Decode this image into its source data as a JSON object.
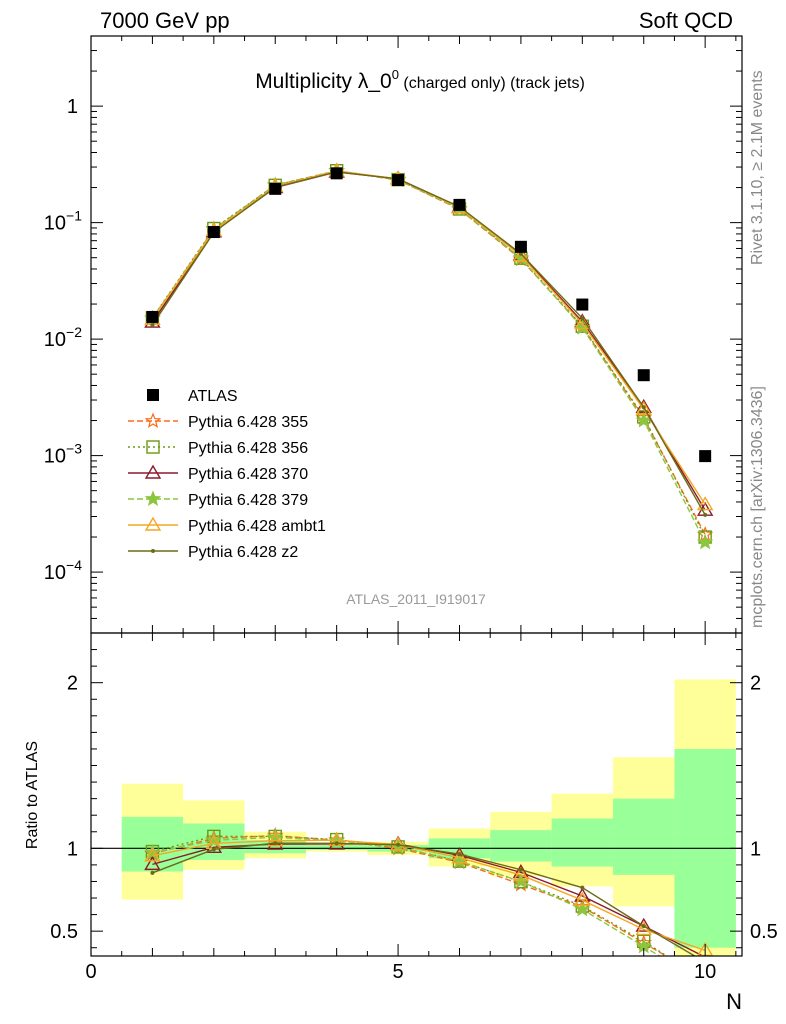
{
  "header": {
    "left": "7000 GeV pp",
    "right": "Soft QCD"
  },
  "side_labels": {
    "rivet": "Rivet 3.1.10, ≥ 2.1M events",
    "mcplots": "mcplots.cern.ch [arXiv:1306.3436]"
  },
  "chart_data": {
    "type": "line",
    "title_main": "Multiplicity λ_0",
    "title_sup": "0",
    "title_suffix": " (charged only) (track jets)",
    "analysis_label": "ATLAS_2011_I919017",
    "xlabel": "N",
    "ylabel_main": "",
    "ylabel_ratio": "Ratio to ATLAS",
    "xlim": [
      0,
      10.6
    ],
    "ylim_main": [
      3e-05,
      4
    ],
    "yscale_main": "log",
    "ylim_ratio": [
      0.35,
      2.3
    ],
    "x_ticks": [
      "0",
      "5",
      "10"
    ],
    "y_ticks_main": [
      {
        "base": "10",
        "exp": "−4",
        "value": 0.0001
      },
      {
        "base": "10",
        "exp": "−3",
        "value": 0.001
      },
      {
        "base": "10",
        "exp": "−2",
        "value": 0.01
      },
      {
        "base": "10",
        "exp": "−1",
        "value": 0.1
      },
      {
        "base": "1",
        "exp": "",
        "value": 1
      }
    ],
    "y_ticks_ratio": [
      "0.5",
      "1",
      "2"
    ],
    "legend_position": "middle-left",
    "data": {
      "name": "ATLAS",
      "x": [
        1,
        2,
        3,
        4,
        5,
        6,
        7,
        8,
        9,
        10
      ],
      "y": [
        0.0155,
        0.083,
        0.195,
        0.265,
        0.232,
        0.142,
        0.062,
        0.0198,
        0.0049,
        0.00099
      ]
    },
    "bands": {
      "x_low": [
        0.5,
        1.5,
        2.5,
        3.5,
        4.5,
        5.5,
        6.5,
        7.5,
        8.5,
        9.5
      ],
      "x_high": [
        1.5,
        2.5,
        3.5,
        4.5,
        5.5,
        6.5,
        7.5,
        8.5,
        9.5,
        10.5
      ],
      "green_low": [
        0.86,
        0.93,
        0.97,
        0.99,
        0.98,
        0.94,
        0.92,
        0.89,
        0.84,
        0.4
      ],
      "green_high": [
        1.19,
        1.15,
        1.05,
        1.02,
        1.02,
        1.06,
        1.11,
        1.18,
        1.3,
        1.6
      ],
      "yellow_low": [
        0.69,
        0.87,
        0.94,
        0.98,
        0.96,
        0.89,
        0.83,
        0.77,
        0.65,
        0.35
      ],
      "yellow_high": [
        1.39,
        1.29,
        1.1,
        1.03,
        1.04,
        1.12,
        1.22,
        1.33,
        1.55,
        2.02
      ]
    },
    "series": [
      {
        "name": "Pythia 6.428 355",
        "color": "#ff6b1a",
        "dash": "6,3",
        "marker": "star-open",
        "y": [
          0.015,
          0.088,
          0.21,
          0.278,
          0.232,
          0.13,
          0.0485,
          0.0128,
          0.0021,
          0.00021
        ]
      },
      {
        "name": "Pythia 6.428 356",
        "color": "#6b9a10",
        "dash": "2,3",
        "marker": "square-open",
        "y": [
          0.0152,
          0.089,
          0.209,
          0.279,
          0.234,
          0.131,
          0.0495,
          0.0129,
          0.00215,
          0.0002
        ]
      },
      {
        "name": "Pythia 6.428 370",
        "color": "#8b1a2a",
        "dash": "",
        "marker": "triangle-open",
        "y": [
          0.014,
          0.0835,
          0.2,
          0.272,
          0.238,
          0.136,
          0.053,
          0.0141,
          0.0026,
          0.00034
        ]
      },
      {
        "name": "Pythia 6.428 379",
        "color": "#8cc63f",
        "dash": "6,3",
        "marker": "star-filled",
        "y": [
          0.0151,
          0.087,
          0.208,
          0.277,
          0.234,
          0.131,
          0.0496,
          0.0125,
          0.002,
          0.00018
        ]
      },
      {
        "name": "Pythia 6.428 ambt1",
        "color": "#f5a623",
        "dash": "",
        "marker": "triangle-open",
        "y": [
          0.0148,
          0.0855,
          0.204,
          0.278,
          0.237,
          0.134,
          0.052,
          0.0136,
          0.0025,
          0.00038
        ]
      },
      {
        "name": "Pythia 6.428 z2",
        "color": "#6b6b1a",
        "dash": "",
        "marker": "dot",
        "y": [
          0.0132,
          0.0825,
          0.201,
          0.273,
          0.237,
          0.137,
          0.054,
          0.0151,
          0.0026,
          0.00031
        ]
      }
    ]
  }
}
